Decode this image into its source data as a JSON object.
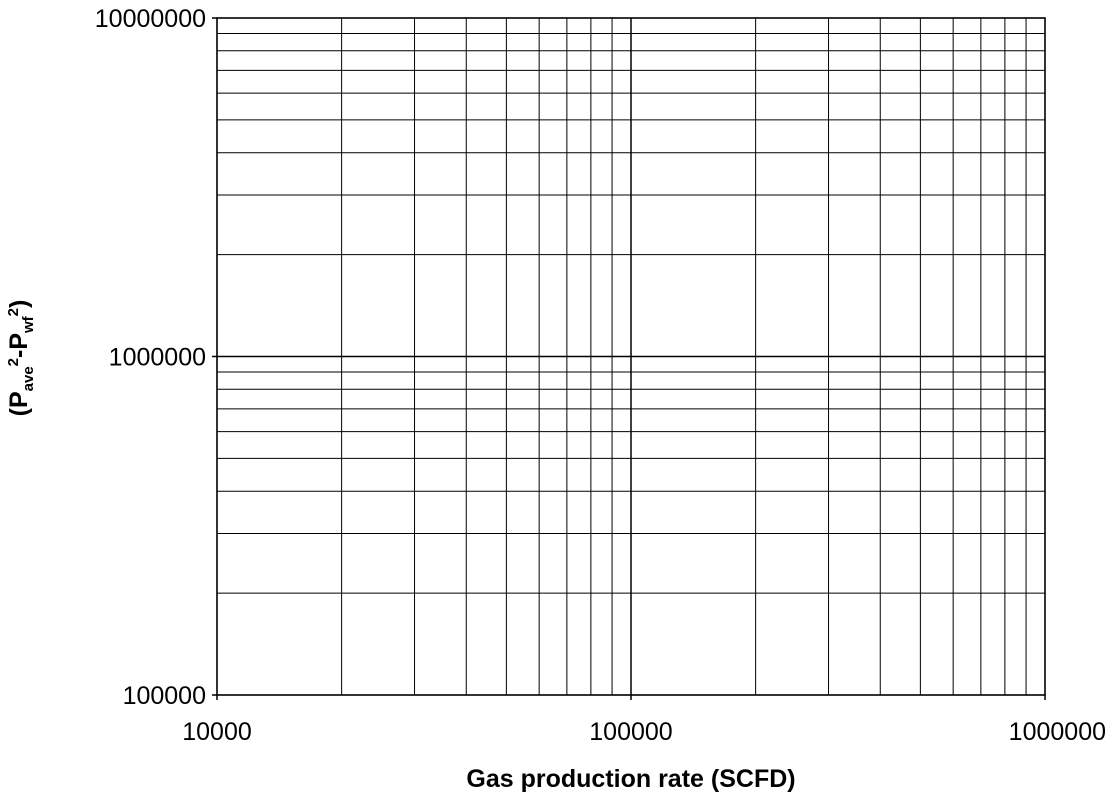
{
  "chart_data": {
    "type": "scatter",
    "x_scale": "log",
    "y_scale": "log",
    "xlim": [
      10000,
      1000000
    ],
    "ylim": [
      100000,
      10000000
    ],
    "xlabel": "Gas production rate (SCFD)",
    "ylabel": {
      "open": "(P",
      "sub1": "ave",
      "sup1": "2",
      "mid": "-P",
      "sub2": "wf",
      "sup2": "2",
      "close": ")"
    },
    "x_tick_labels": [
      "10000",
      "100000",
      "1000000"
    ],
    "y_tick_labels": [
      "100000",
      "1000000",
      "10000000"
    ],
    "x_ticks": [
      10000,
      100000,
      1000000
    ],
    "y_ticks": [
      100000,
      1000000,
      10000000
    ],
    "grid": true,
    "minor_grid": true,
    "series": []
  }
}
